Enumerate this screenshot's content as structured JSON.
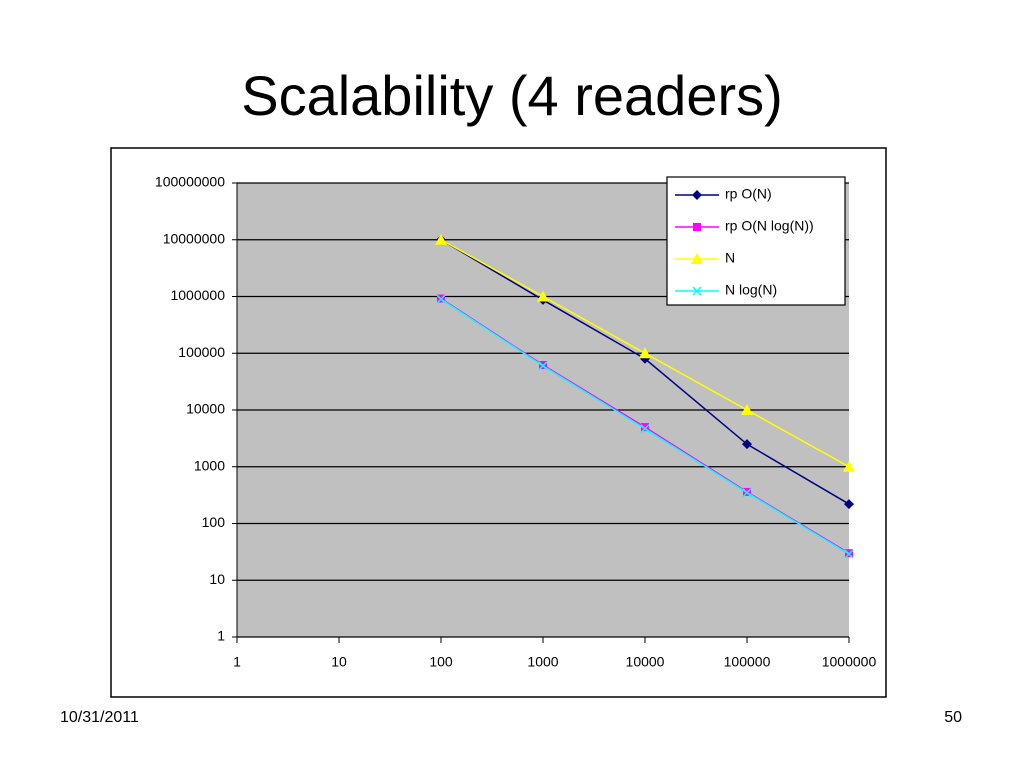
{
  "title": "Scalability (4 readers)",
  "footer": {
    "date": "10/31/2011",
    "page": "50"
  },
  "chart_data": {
    "type": "line",
    "log_x": true,
    "log_y": true,
    "grid": true,
    "legend": "top-right",
    "plot_background": "#c0c0c0",
    "x": [
      100,
      1000,
      10000,
      100000,
      1000000
    ],
    "xlim": [
      1,
      1000000
    ],
    "xticks": [
      1,
      10,
      100,
      1000,
      10000,
      100000,
      1000000
    ],
    "ylim": [
      1,
      100000000
    ],
    "yticks": [
      1,
      10,
      100,
      1000,
      10000,
      100000,
      1000000,
      10000000,
      100000000
    ],
    "series": [
      {
        "name": "rp O(N)",
        "color": "#000080",
        "marker": "diamond",
        "values": [
          10000000,
          870000,
          80000,
          2500,
          220
        ]
      },
      {
        "name": "rp O(N log(N))",
        "color": "#ff00ff",
        "marker": "square",
        "values": [
          920000,
          62000,
          5000,
          360,
          30
        ]
      },
      {
        "name": "N",
        "color": "#ffff00",
        "marker": "triangle",
        "values": [
          10000000,
          1000000,
          100000,
          10000,
          1000
        ]
      },
      {
        "name": "N log(N)",
        "color": "#00ffff",
        "marker": "x",
        "values": [
          900000,
          60000,
          4700,
          350,
          29
        ]
      }
    ]
  }
}
